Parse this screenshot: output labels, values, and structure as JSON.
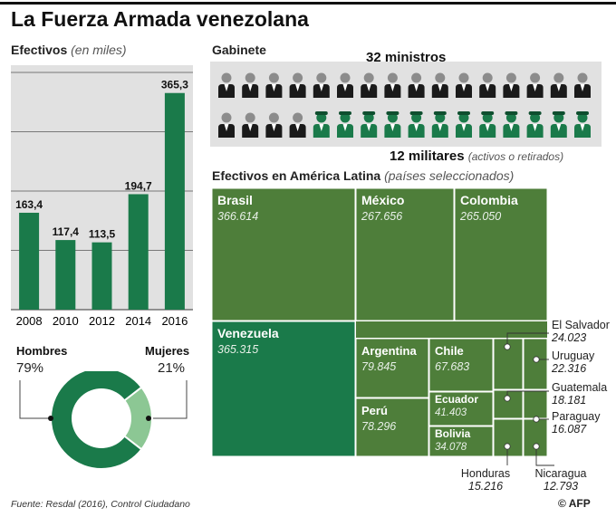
{
  "title": "La Fuerza Armada venezolana",
  "efectivos": {
    "label": "Efectivos",
    "unit_note": "(en miles)"
  },
  "gabinete": {
    "label": "Gabinete",
    "ministers_text": "32 ministros",
    "military_count_text": "12 militares",
    "military_note": "(activos o retirados)",
    "total_ministers": 32,
    "military": 12
  },
  "genero": {
    "hombres_label": "Hombres",
    "hombres_value": "79%",
    "mujeres_label": "Mujeres",
    "mujeres_value": "21%"
  },
  "latam": {
    "label": "Efectivos en América Latina",
    "note": "(países seleccionados)"
  },
  "footer": {
    "source": "Fuente: Resdal (2016), Control Ciudadano",
    "credit": "© AFP"
  },
  "colors": {
    "dark_green": "#1a7a4a",
    "olive_green": "#4e7e3a",
    "light_green": "#8cc794",
    "grey_bg": "#e1e1e1",
    "person_grey": "#8c8c8c",
    "person_dark": "#1a1a1a"
  },
  "chart_data": [
    {
      "type": "bar",
      "title": "Efectivos (en miles)",
      "categories": [
        "2008",
        "2010",
        "2012",
        "2014",
        "2016"
      ],
      "values": [
        163.4,
        117.4,
        113.5,
        194.7,
        365.3
      ],
      "labels": [
        "163,4",
        "117,4",
        "113,5",
        "194,7",
        "365,3"
      ],
      "ylim": [
        0,
        400
      ],
      "grid": true
    },
    {
      "type": "pie",
      "title": "Hombres / Mujeres",
      "categories": [
        "Hombres",
        "Mujeres"
      ],
      "values": [
        79,
        21
      ]
    },
    {
      "type": "treemap",
      "title": "Efectivos en América Latina (países seleccionados)",
      "items": [
        {
          "name": "Brasil",
          "value": 366614,
          "label": "366.614"
        },
        {
          "name": "México",
          "value": 267656,
          "label": "267.656"
        },
        {
          "name": "Colombia",
          "value": 265050,
          "label": "265.050"
        },
        {
          "name": "Venezuela",
          "value": 365315,
          "label": "365.315"
        },
        {
          "name": "Argentina",
          "value": 79845,
          "label": "79.845"
        },
        {
          "name": "Chile",
          "value": 67683,
          "label": "67.683"
        },
        {
          "name": "Perú",
          "value": 78296,
          "label": "78.296"
        },
        {
          "name": "Ecuador",
          "value": 41403,
          "label": "41.403"
        },
        {
          "name": "Bolivia",
          "value": 34078,
          "label": "34.078"
        },
        {
          "name": "El Salvador",
          "value": 24023,
          "label": "24.023"
        },
        {
          "name": "Uruguay",
          "value": 22316,
          "label": "22.316"
        },
        {
          "name": "Guatemala",
          "value": 18181,
          "label": "18.181"
        },
        {
          "name": "Paraguay",
          "value": 16087,
          "label": "16.087"
        },
        {
          "name": "Honduras",
          "value": 15216,
          "label": "15.216"
        },
        {
          "name": "Nicaragua",
          "value": 12793,
          "label": "12.793"
        }
      ]
    }
  ]
}
